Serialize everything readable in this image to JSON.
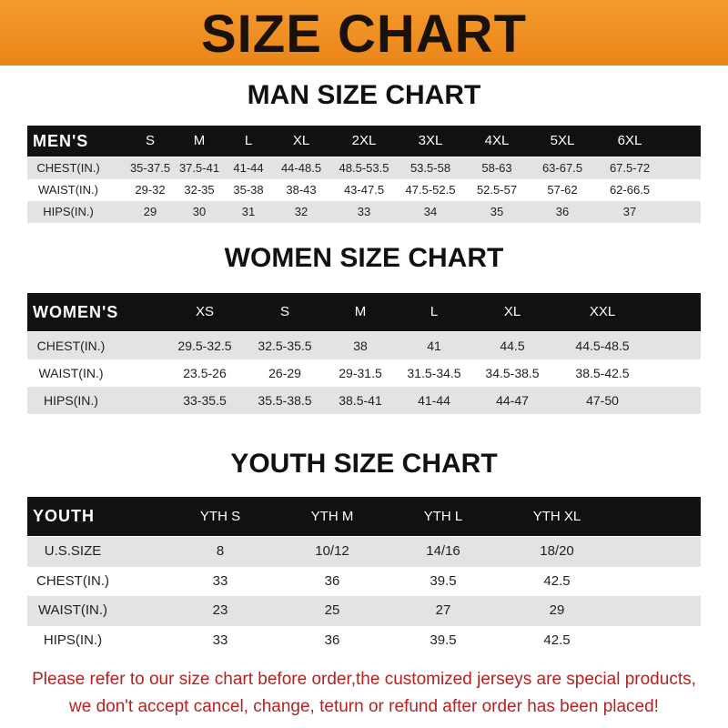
{
  "banner": {
    "title": "SIZE CHART",
    "color": "#ef8c20"
  },
  "tables": [
    {
      "title": "MAN SIZE CHART",
      "header": [
        "MEN'S",
        "S",
        "M",
        "L",
        "XL",
        "2XL",
        "3XL",
        "4XL",
        "5XL",
        "6XL"
      ],
      "rows": [
        [
          "CHEST(IN.)",
          "35-37.5",
          "37.5-41",
          "41-44",
          "44-48.5",
          "48.5-53.5",
          "53.5-58",
          "58-63",
          "63-67.5",
          "67.5-72"
        ],
        [
          "WAIST(IN.)",
          "29-32",
          "32-35",
          "35-38",
          "38-43",
          "43-47.5",
          "47.5-52.5",
          "52.5-57",
          "57-62",
          "62-66.5"
        ],
        [
          "HIPS(IN.)",
          "29",
          "30",
          "31",
          "32",
          "33",
          "34",
          "35",
          "36",
          "37"
        ]
      ]
    },
    {
      "title": "WOMEN SIZE CHART",
      "header": [
        "WOMEN'S",
        "XS",
        "S",
        "M",
        "L",
        "XL",
        "XXL"
      ],
      "rows": [
        [
          "CHEST(IN.)",
          "29.5-32.5",
          "32.5-35.5",
          "38",
          "41",
          "44.5",
          "44.5-48.5"
        ],
        [
          "WAIST(IN.)",
          "23.5-26",
          "26-29",
          "29-31.5",
          "31.5-34.5",
          "34.5-38.5",
          "38.5-42.5"
        ],
        [
          "HIPS(IN.)",
          "33-35.5",
          "35.5-38.5",
          "38.5-41",
          "41-44",
          "44-47",
          "47-50"
        ]
      ]
    },
    {
      "title": "YOUTH SIZE CHART",
      "header": [
        "YOUTH",
        "YTH S",
        "YTH M",
        "YTH L",
        "YTH XL"
      ],
      "rows": [
        [
          "U.S.SIZE",
          "8",
          "10/12",
          "14/16",
          "18/20"
        ],
        [
          "CHEST(IN.)",
          "33",
          "36",
          "39.5",
          "42.5"
        ],
        [
          "WAIST(IN.)",
          "23",
          "25",
          "27",
          "29"
        ],
        [
          "HIPS(IN.)",
          "33",
          "36",
          "39.5",
          "42.5"
        ]
      ]
    }
  ],
  "footer": {
    "line1": "Please refer to our size chart before order,the customized jerseys are special products,",
    "line2": "we don't accept cancel, change, teturn or refund after order has been placed!",
    "color": "#b52222"
  }
}
